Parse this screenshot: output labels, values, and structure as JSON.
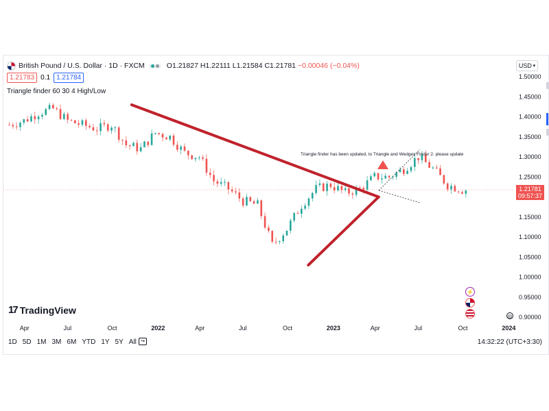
{
  "symbol": {
    "name": "British Pound / U.S. Dollar · 1D · FXCM",
    "open": "O1.21827",
    "high": "H1.22111",
    "low": "L1.21584",
    "close": "C1.21781",
    "change": "−0.00046 (−0.04%)"
  },
  "quote": {
    "sell": "1.21783",
    "spread": "0.1",
    "buy": "1.21784"
  },
  "indicator": "Triangle finder 60 30 4 High/Low",
  "currency": "USD",
  "note": "Triangle finder has been updated, to Triangle and Wedges Finder 2. please update",
  "price_label": {
    "price": "1.21781",
    "countdown": "09:57:37"
  },
  "brand": "TradingView",
  "ranges": [
    "1D",
    "5D",
    "1M",
    "3M",
    "6M",
    "YTD",
    "1Y",
    "5Y",
    "All"
  ],
  "clock": "14:32:22 (UTC+3:30)",
  "colors": {
    "up": "#26a69a",
    "down": "#ef5350",
    "trendline": "#c0222b",
    "accent": "#2962ff"
  },
  "chart_data": {
    "type": "candlestick",
    "y_axis_ticks": [
      "1.50000",
      "1.45000",
      "1.40000",
      "1.35000",
      "1.30000",
      "1.25000",
      "1.20000",
      "1.15000",
      "1.10000",
      "1.05000",
      "1.00000",
      "0.95000",
      "0.90000"
    ],
    "ylim": [
      0.9,
      1.5
    ],
    "x_axis_ticks": [
      "Apr",
      "Jul",
      "Oct",
      "2022",
      "Apr",
      "Jul",
      "Oct",
      "2023",
      "Apr",
      "Jul",
      "Oct",
      "2024"
    ],
    "close_path": [
      {
        "x": "2021-03",
        "y": 1.38
      },
      {
        "x": "2021-04",
        "y": 1.39
      },
      {
        "x": "2021-05",
        "y": 1.41
      },
      {
        "x": "2021-06",
        "y": 1.42
      },
      {
        "x": "2021-07",
        "y": 1.39
      },
      {
        "x": "2021-08",
        "y": 1.38
      },
      {
        "x": "2021-09",
        "y": 1.37
      },
      {
        "x": "2021-10",
        "y": 1.38
      },
      {
        "x": "2021-11",
        "y": 1.33
      },
      {
        "x": "2021-12",
        "y": 1.32
      },
      {
        "x": "2022-01",
        "y": 1.36
      },
      {
        "x": "2022-02",
        "y": 1.35
      },
      {
        "x": "2022-03",
        "y": 1.31
      },
      {
        "x": "2022-04",
        "y": 1.3
      },
      {
        "x": "2022-05",
        "y": 1.24
      },
      {
        "x": "2022-06",
        "y": 1.22
      },
      {
        "x": "2022-07",
        "y": 1.19
      },
      {
        "x": "2022-08",
        "y": 1.18
      },
      {
        "x": "2022-09",
        "y": 1.08
      },
      {
        "x": "2022-10",
        "y": 1.12
      },
      {
        "x": "2022-11",
        "y": 1.18
      },
      {
        "x": "2022-12",
        "y": 1.22
      },
      {
        "x": "2023-01",
        "y": 1.23
      },
      {
        "x": "2023-02",
        "y": 1.21
      },
      {
        "x": "2023-03",
        "y": 1.22
      },
      {
        "x": "2023-04",
        "y": 1.25
      },
      {
        "x": "2023-05",
        "y": 1.25
      },
      {
        "x": "2023-06",
        "y": 1.27
      },
      {
        "x": "2023-07",
        "y": 1.3
      },
      {
        "x": "2023-08",
        "y": 1.27
      },
      {
        "x": "2023-09",
        "y": 1.23
      },
      {
        "x": "2023-10",
        "y": 1.2178
      }
    ],
    "trendlines": [
      {
        "from": {
          "x": "2021-11",
          "y": 1.43
        },
        "to": {
          "x": "2023-04",
          "y": 1.2
        }
      },
      {
        "from": {
          "x": "2022-11",
          "y": 1.03
        },
        "to": {
          "x": "2023-04",
          "y": 1.2
        }
      }
    ],
    "marker": {
      "type": "triangle-up",
      "x": "2023-04",
      "y": 1.27
    },
    "last_price": 1.21781
  }
}
